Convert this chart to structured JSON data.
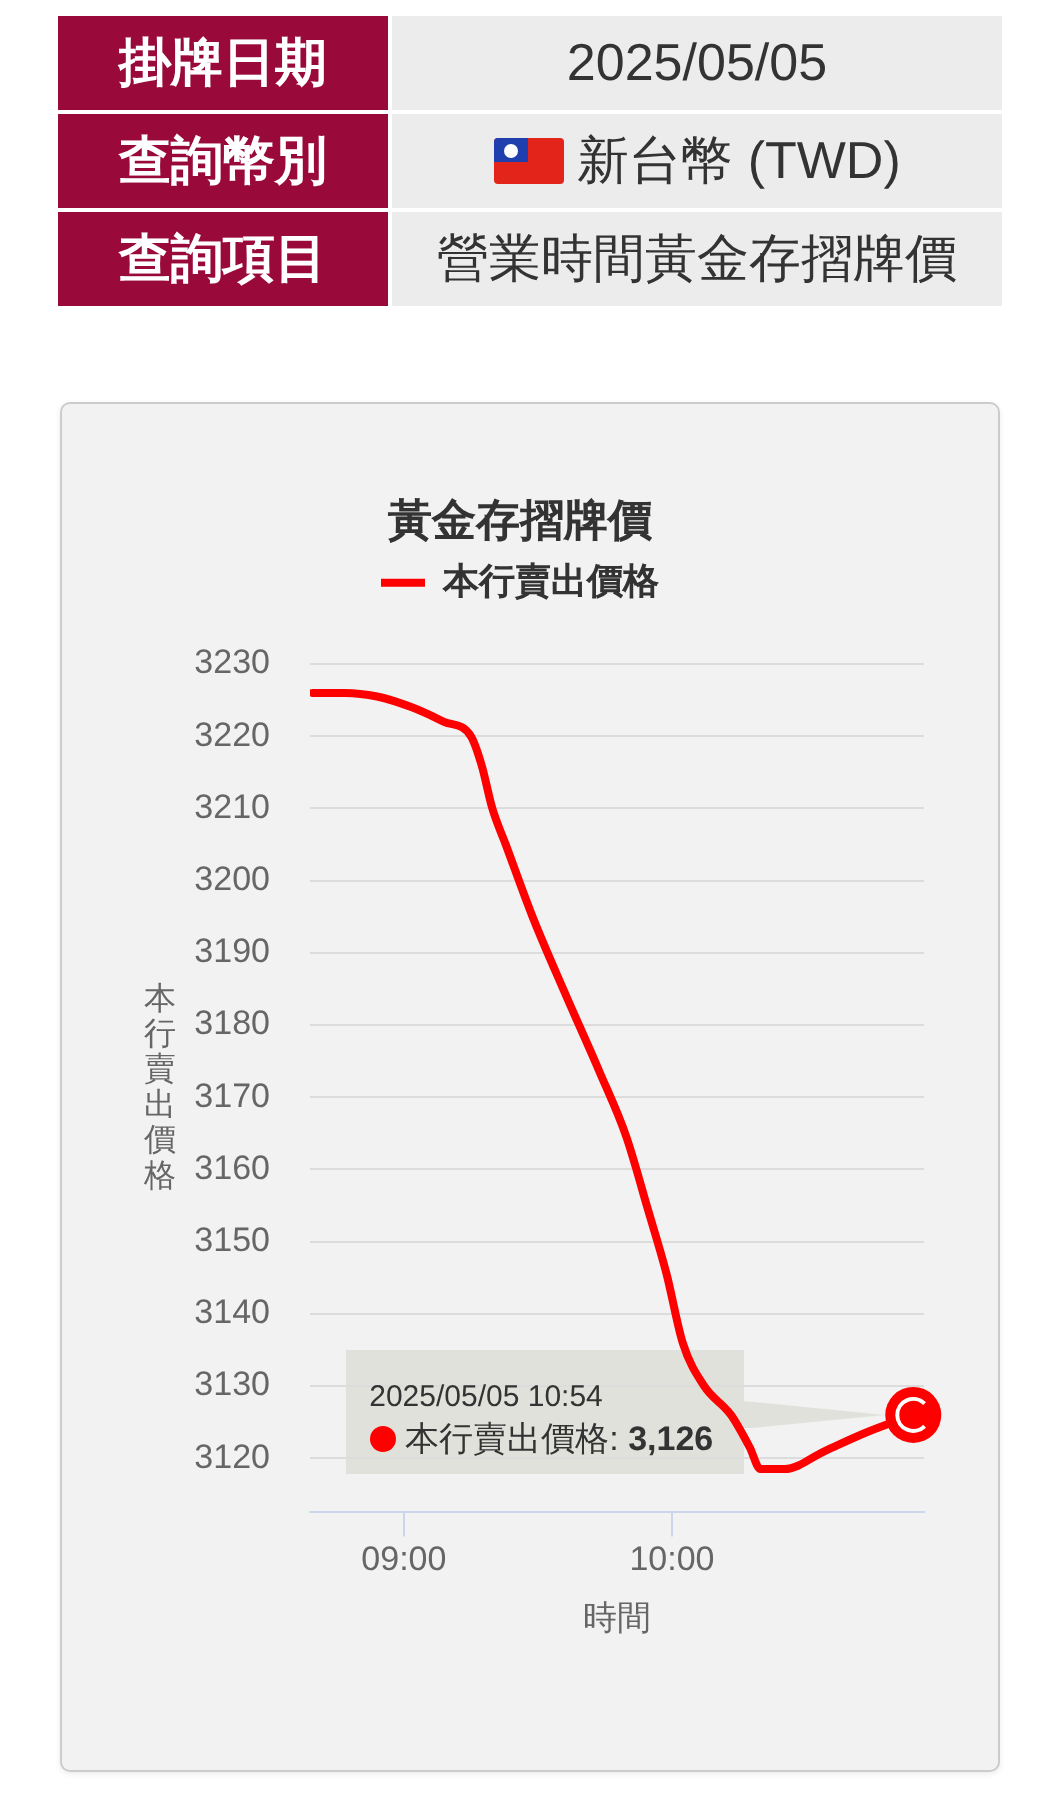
{
  "chart_data": [
    {
      "type": "other",
      "annotations": [
        "掛牌日期",
        "2025/05/05",
        "查詢幣別",
        "新台幣 (TWD)",
        "查詢項目",
        "營業時間黃金存摺牌價"
      ]
    },
    {
      "type": "line",
      "title": "黃金存摺牌價",
      "xlabel": "時間",
      "ylabel": "本行賣出價格",
      "x": [
        8.66,
        8.78,
        8.9,
        9.03,
        9.15,
        9.25,
        9.29,
        9.33,
        9.38,
        9.48,
        9.6,
        9.73,
        9.83,
        9.91,
        9.98,
        10.04,
        10.12,
        10.22,
        10.29,
        10.33,
        10.42,
        10.57,
        10.72,
        10.9
      ],
      "series": [
        {
          "name": "本行賣出價格",
          "color": "#ff0000",
          "values": [
            3226,
            3226,
            3225.5,
            3224,
            3222,
            3220,
            3216,
            3210,
            3205,
            3195,
            3184.5,
            3173.5,
            3164.5,
            3154.5,
            3145.5,
            3136,
            3130,
            3126,
            3121.5,
            3118.5,
            3118.5,
            3121,
            3123.5,
            3126
          ]
        },
        {
          "type": "scatter",
          "color": "#ff0000",
          "x": [
            10.9
          ],
          "values": [
            3126
          ]
        }
      ],
      "xlim": [
        8.65,
        10.94
      ],
      "xticks": [
        {
          "value": 9,
          "label": "09:00"
        },
        {
          "value": 10,
          "label": "10:00"
        }
      ],
      "ylim": [
        3112.5,
        3230
      ],
      "yticks": [
        3120,
        3130,
        3140,
        3150,
        3160,
        3170,
        3180,
        3190,
        3200,
        3210,
        3220,
        3230
      ],
      "grid": "y",
      "legend": "top",
      "line_style": "solid",
      "annotations": [
        "2025/05/05 10:54",
        "本行賣出價格: 3,126"
      ]
    }
  ]
}
